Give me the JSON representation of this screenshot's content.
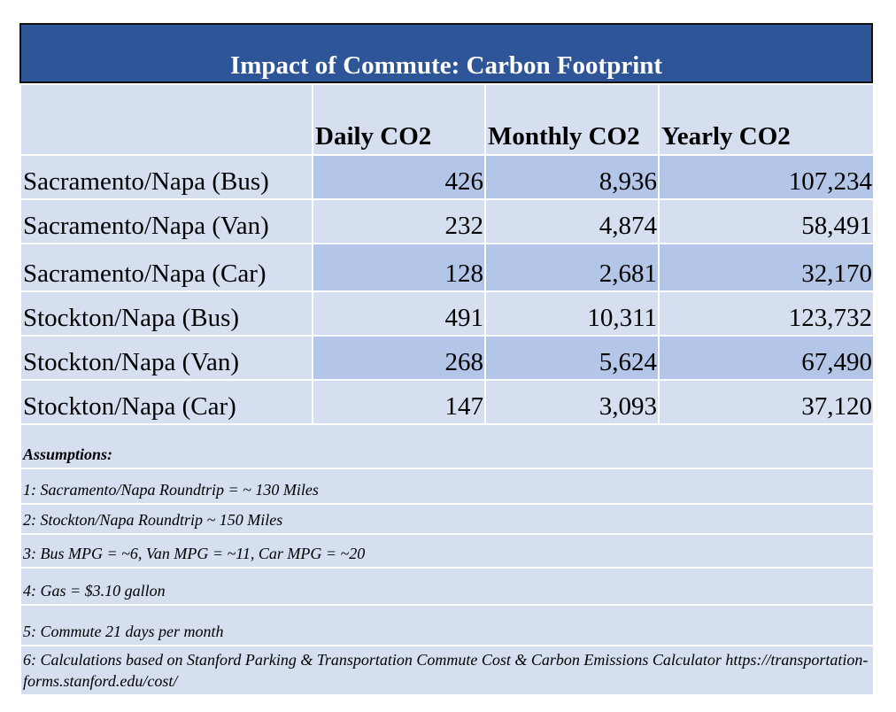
{
  "title": "Impact of Commute: Carbon Footprint",
  "columns": [
    "",
    "Daily CO2",
    "Monthly CO2",
    "Yearly CO2"
  ],
  "rows": [
    {
      "label": "Sacramento/Napa (Bus)",
      "daily": "426",
      "monthly": "8,936",
      "yearly": "107,234"
    },
    {
      "label": "Sacramento/Napa (Van)",
      "daily": "232",
      "monthly": "4,874",
      "yearly": "58,491"
    },
    {
      "label": "Sacramento/Napa (Car)",
      "daily": "128",
      "monthly": "2,681",
      "yearly": "32,170"
    },
    {
      "label": "Stockton/Napa (Bus)",
      "daily": "491",
      "monthly": "10,311",
      "yearly": "123,732"
    },
    {
      "label": "Stockton/Napa (Van)",
      "daily": "268",
      "monthly": "5,624",
      "yearly": "67,490"
    },
    {
      "label": "Stockton/Napa (Car)",
      "daily": "147",
      "monthly": "3,093",
      "yearly": "37,120"
    }
  ],
  "assumptions": {
    "heading": "Assumptions:",
    "items": [
      "1: Sacramento/Napa Roundtrip = ~ 130 Miles",
      "2: Stockton/Napa Roundtrip  ~ 150 Miles",
      "3: Bus MPG = ~6, Van MPG = ~11, Car MPG = ~20",
      "4: Gas = $3.10 gallon",
      "5: Commute 21 days per month",
      "6: Calculations based on Stanford Parking & Transportation Commute Cost & Carbon Emissions Calculator https://transportation-forms.stanford.edu/cost/"
    ]
  }
}
